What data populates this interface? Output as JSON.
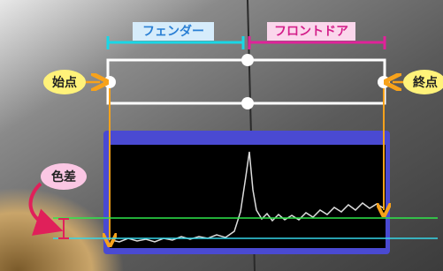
{
  "labels": {
    "fender": "フェンダー",
    "front_door": "フロントドア",
    "start_point": "始点",
    "end_point": "終点",
    "color_difference": "色差"
  }
}
